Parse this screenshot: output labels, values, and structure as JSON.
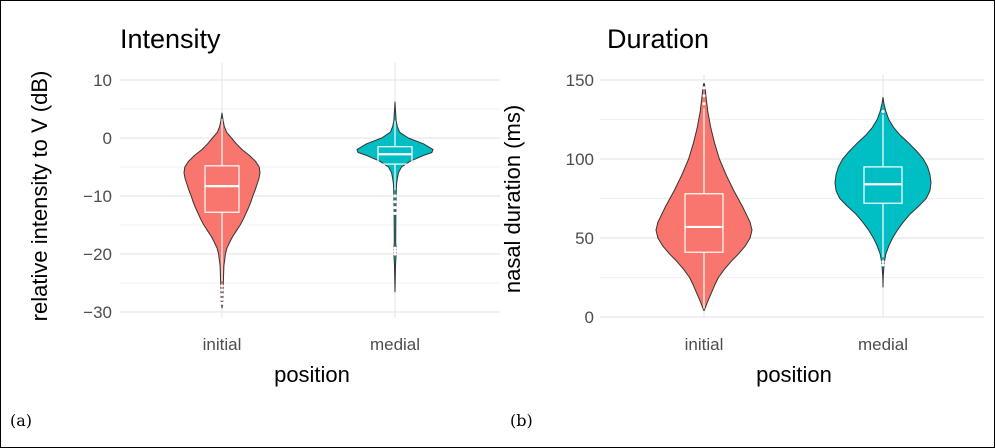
{
  "captions": {
    "a": "(a)",
    "b": "(b)"
  },
  "colors": {
    "initial": "#F8766D",
    "medial": "#00BFC4",
    "grid": "#EBEBEB"
  },
  "chart_data": [
    {
      "type": "violin",
      "title": "Intensity",
      "xlabel": "position",
      "ylabel": "relative intensity to V (dB)",
      "ylim": [
        -31,
        13
      ],
      "yticks": [
        10,
        0,
        -10,
        -20,
        -30
      ],
      "ytick_labels": [
        "10",
        "0",
        "−10",
        "−20",
        "−30"
      ],
      "categories": [
        "initial",
        "medial"
      ],
      "grid": true,
      "series": [
        {
          "category": "initial",
          "color": "#F8766D",
          "box": {
            "q1": -12.8,
            "median": -8.3,
            "q3": -4.8,
            "whisker_low": -24.7,
            "whisker_high": 3.3
          },
          "outliers": [
            -25.5,
            -26.2,
            -27.0,
            -27.8,
            -28.5
          ],
          "density": [
            [
              4.3,
              0.0
            ],
            [
              3.0,
              0.03
            ],
            [
              2.0,
              0.06
            ],
            [
              1.0,
              0.12
            ],
            [
              0.0,
              0.25
            ],
            [
              -1.0,
              0.38
            ],
            [
              -2.0,
              0.53
            ],
            [
              -3.0,
              0.72
            ],
            [
              -4.0,
              0.88
            ],
            [
              -5.0,
              0.98
            ],
            [
              -6.0,
              1.0
            ],
            [
              -7.0,
              0.97
            ],
            [
              -8.0,
              0.92
            ],
            [
              -9.0,
              0.87
            ],
            [
              -10.0,
              0.81
            ],
            [
              -11.0,
              0.76
            ],
            [
              -12.0,
              0.7
            ],
            [
              -13.0,
              0.63
            ],
            [
              -14.0,
              0.56
            ],
            [
              -15.0,
              0.48
            ],
            [
              -16.0,
              0.38
            ],
            [
              -17.0,
              0.28
            ],
            [
              -18.0,
              0.2
            ],
            [
              -19.0,
              0.13
            ],
            [
              -20.0,
              0.09
            ],
            [
              -21.0,
              0.07
            ],
            [
              -22.0,
              0.05
            ],
            [
              -24.0,
              0.04
            ],
            [
              -26.0,
              0.03
            ],
            [
              -28.0,
              0.02
            ],
            [
              -29.3,
              0.0
            ]
          ]
        },
        {
          "category": "medial",
          "color": "#00BFC4",
          "box": {
            "q1": -4.5,
            "median": -2.8,
            "q3": -1.5,
            "whisker_low": -9.0,
            "whisker_high": 3.0
          },
          "outliers": [
            -10.0,
            -11.0,
            -12.0,
            -13.0,
            -19.0,
            -19.5,
            -20.0
          ],
          "density": [
            [
              6.2,
              0.0
            ],
            [
              5.0,
              0.01
            ],
            [
              4.0,
              0.02
            ],
            [
              3.0,
              0.03
            ],
            [
              2.0,
              0.06
            ],
            [
              1.0,
              0.12
            ],
            [
              0.0,
              0.35
            ],
            [
              -1.0,
              0.75
            ],
            [
              -2.0,
              1.0
            ],
            [
              -2.5,
              0.97
            ],
            [
              -3.0,
              0.75
            ],
            [
              -4.0,
              0.4
            ],
            [
              -5.0,
              0.17
            ],
            [
              -6.0,
              0.09
            ],
            [
              -7.0,
              0.06
            ],
            [
              -8.0,
              0.04
            ],
            [
              -10.0,
              0.03
            ],
            [
              -12.0,
              0.025
            ],
            [
              -15.0,
              0.02
            ],
            [
              -18.0,
              0.018
            ],
            [
              -19.0,
              0.03
            ],
            [
              -20.0,
              0.028
            ],
            [
              -22.0,
              0.012
            ],
            [
              -24.0,
              0.008
            ],
            [
              -26.5,
              0.0
            ]
          ]
        }
      ]
    },
    {
      "type": "violin",
      "title": "Duration",
      "xlabel": "position",
      "ylabel": "nasal duration (ms)",
      "ylim": [
        0,
        153
      ],
      "yticks": [
        150,
        100,
        50,
        0
      ],
      "ytick_labels": [
        "150",
        "100",
        "50",
        "0"
      ],
      "categories": [
        "initial",
        "medial"
      ],
      "grid": true,
      "series": [
        {
          "category": "initial",
          "color": "#F8766D",
          "box": {
            "q1": 41,
            "median": 57,
            "q3": 78,
            "whisker_low": 5,
            "whisker_high": 132
          },
          "outliers": [
            135,
            140,
            145,
            149
          ],
          "density": [
            [
              149,
              0.0
            ],
            [
              145,
              0.02
            ],
            [
              140,
              0.04
            ],
            [
              130,
              0.08
            ],
            [
              120,
              0.14
            ],
            [
              110,
              0.22
            ],
            [
              100,
              0.32
            ],
            [
              90,
              0.46
            ],
            [
              80,
              0.62
            ],
            [
              70,
              0.8
            ],
            [
              60,
              0.96
            ],
            [
              55,
              1.0
            ],
            [
              50,
              0.96
            ],
            [
              45,
              0.86
            ],
            [
              40,
              0.72
            ],
            [
              35,
              0.56
            ],
            [
              30,
              0.42
            ],
            [
              25,
              0.3
            ],
            [
              20,
              0.22
            ],
            [
              15,
              0.15
            ],
            [
              10,
              0.08
            ],
            [
              6,
              0.03
            ],
            [
              4,
              0.0
            ]
          ]
        },
        {
          "category": "medial",
          "color": "#00BFC4",
          "box": {
            "q1": 72,
            "median": 84,
            "q3": 95,
            "whisker_low": 38,
            "whisker_high": 128
          },
          "outliers": [
            130,
            35,
            33
          ],
          "density": [
            [
              139,
              0.0
            ],
            [
              135,
              0.02
            ],
            [
              130,
              0.06
            ],
            [
              125,
              0.12
            ],
            [
              120,
              0.22
            ],
            [
              115,
              0.36
            ],
            [
              110,
              0.54
            ],
            [
              105,
              0.7
            ],
            [
              100,
              0.84
            ],
            [
              95,
              0.93
            ],
            [
              90,
              0.98
            ],
            [
              85,
              1.0
            ],
            [
              80,
              0.98
            ],
            [
              75,
              0.9
            ],
            [
              70,
              0.74
            ],
            [
              65,
              0.56
            ],
            [
              60,
              0.42
            ],
            [
              55,
              0.3
            ],
            [
              50,
              0.2
            ],
            [
              45,
              0.12
            ],
            [
              40,
              0.06
            ],
            [
              35,
              0.03
            ],
            [
              30,
              0.015
            ],
            [
              25,
              0.005
            ],
            [
              19,
              0.0
            ]
          ]
        }
      ]
    }
  ]
}
